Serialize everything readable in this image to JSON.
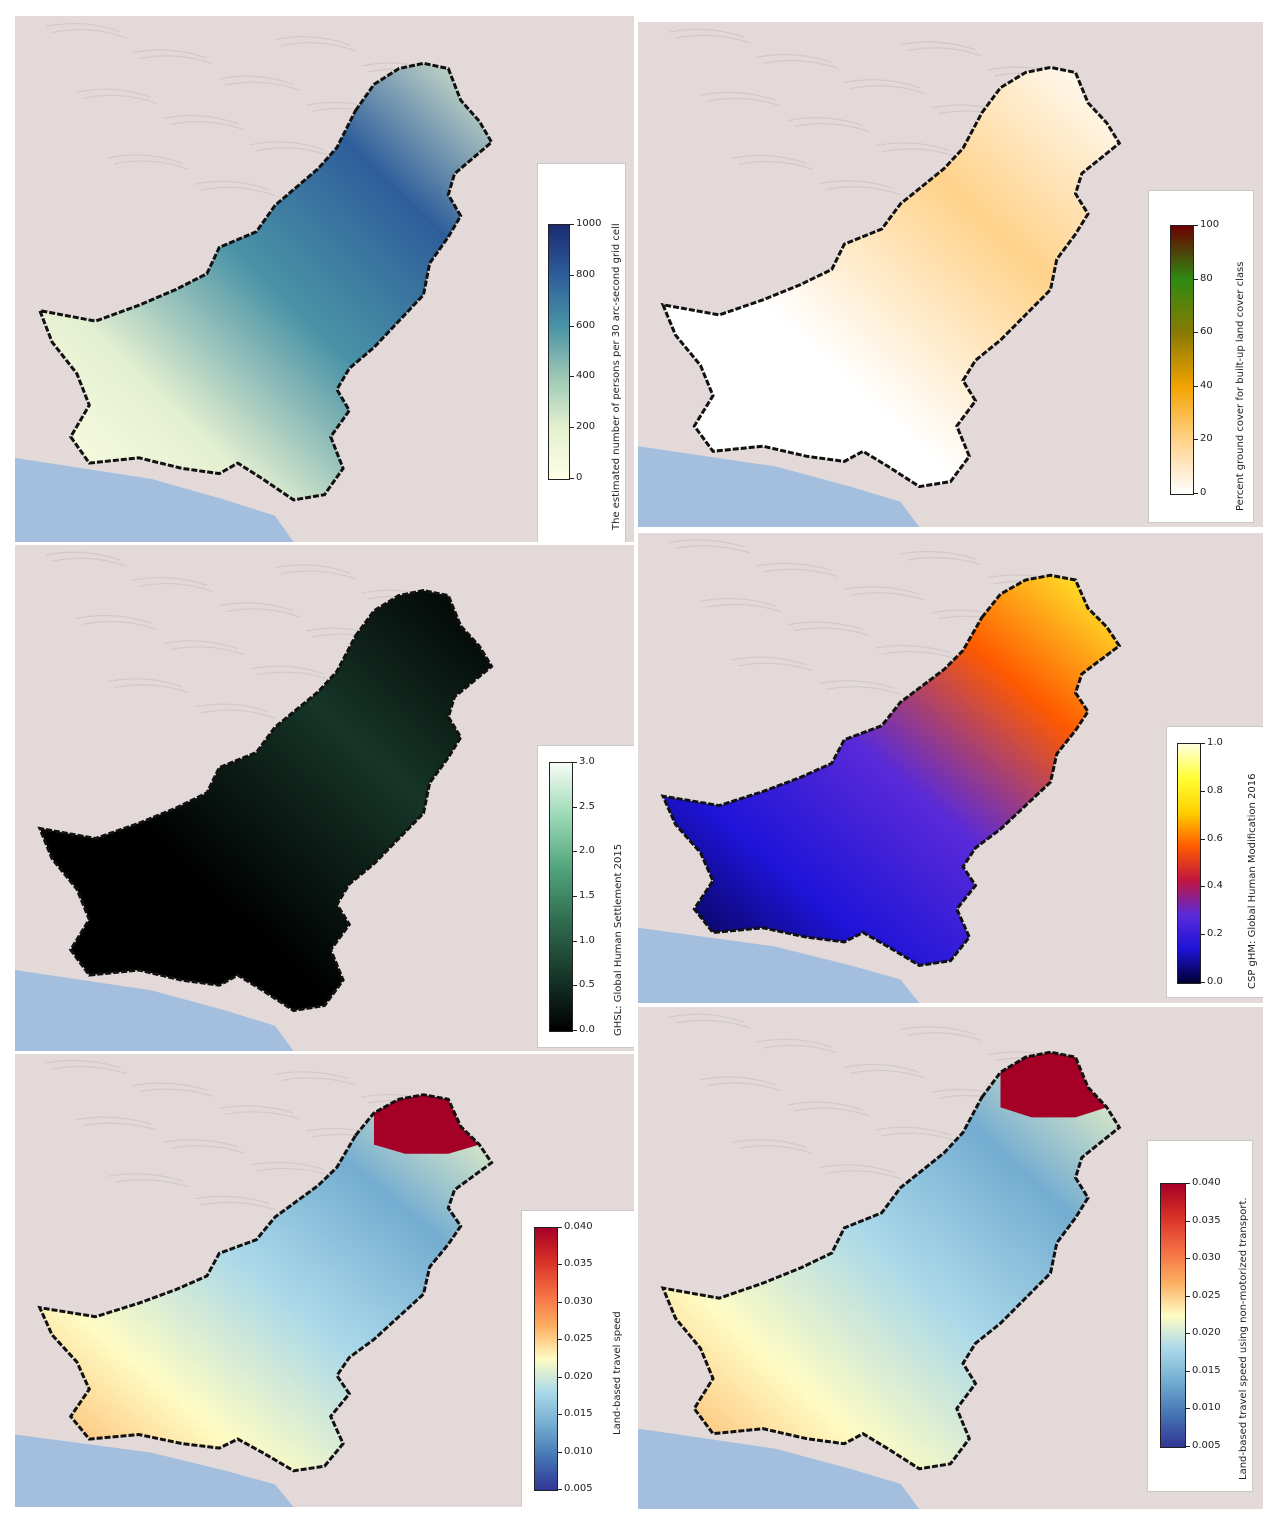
{
  "panels": [
    {
      "id": "population",
      "colorbar_label": "The estimated number of persons per 30 arc-second grid cell",
      "ticks": [
        "1000",
        "800",
        "600",
        "400",
        "200",
        "0"
      ],
      "colors": [
        "#fffee6",
        "#e4f0d0",
        "#9cc8b4",
        "#4a93a6",
        "#2e5e9a",
        "#1b2a74"
      ],
      "country_fill": "#f3f6dc"
    },
    {
      "id": "built_up",
      "colorbar_label": "Percent ground cover for built-up land cover class",
      "ticks": [
        "100",
        "80",
        "60",
        "40",
        "20",
        "0"
      ],
      "colors": [
        "#ffffff",
        "#ffd28a",
        "#f2a300",
        "#8a7a00",
        "#2f8a12",
        "#6b0000"
      ],
      "country_fill": "#fefefe"
    },
    {
      "id": "ghsl",
      "colorbar_label": "GHSL: Global Human Settlement 2015",
      "ticks": [
        "3.0",
        "2.5",
        "2.0",
        "1.5",
        "1.0",
        "0.5",
        "0.0"
      ],
      "colors": [
        "#000000",
        "#163528",
        "#2f6a4e",
        "#4fa27a",
        "#9ad9b5",
        "#f7fcf5"
      ],
      "country_fill": "#0b1712"
    },
    {
      "id": "ghm",
      "colorbar_label": "CSP gHM: Global Human Modification 2016",
      "ticks": [
        "1.0",
        "0.8",
        "0.6",
        "0.4",
        "0.2",
        "0.0"
      ],
      "colors": [
        "#000033",
        "#1e14d8",
        "#5a2ad8",
        "#c01640",
        "#ff5a00",
        "#ffd000",
        "#ffff33",
        "#ffffe0"
      ],
      "country_fill": "#2a2ad0"
    },
    {
      "id": "travel_speed",
      "colorbar_label": "Land-based travel speed",
      "ticks": [
        "0.040",
        "0.035",
        "0.030",
        "0.025",
        "0.020",
        "0.015",
        "0.010",
        "0.005"
      ],
      "colors": [
        "#313695",
        "#4575b4",
        "#74add1",
        "#abd9e9",
        "#fefcc4",
        "#fdae61",
        "#f46d43",
        "#d73027",
        "#a50026"
      ],
      "country_fill": "#c9e2ee"
    },
    {
      "id": "travel_speed_nonmotor",
      "colorbar_label": "Land-based travel speed using non-motorized transport.",
      "ticks": [
        "0.040",
        "0.035",
        "0.030",
        "0.025",
        "0.020",
        "0.015",
        "0.010",
        "0.005"
      ],
      "colors": [
        "#313695",
        "#4575b4",
        "#74add1",
        "#abd9e9",
        "#fefcc4",
        "#fdae61",
        "#f46d43",
        "#d73027",
        "#a50026"
      ],
      "country_fill": "#dcecf2"
    }
  ],
  "basemap": {
    "land": "#e3d9d9",
    "relief": "#cfc6c6",
    "sea": "#a3bfdd",
    "border": "#111111"
  }
}
